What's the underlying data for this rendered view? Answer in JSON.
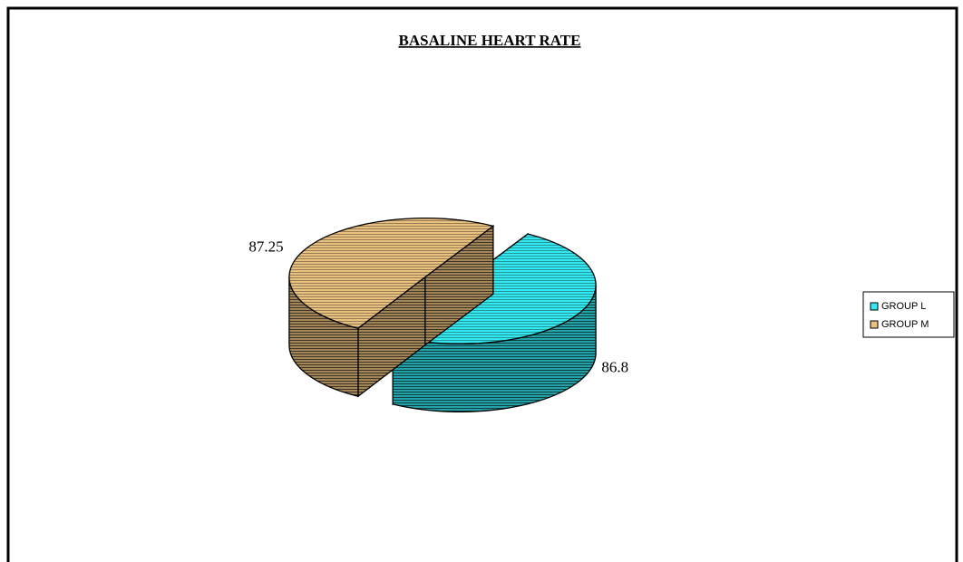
{
  "chart_data": {
    "type": "pie",
    "title": "BASALINE HEART RATE",
    "categories": [
      "GROUP L",
      "GROUP M"
    ],
    "values": [
      86.8,
      87.25
    ],
    "colors": [
      "#33e8f0",
      "#e8c080"
    ],
    "legend": "right"
  }
}
